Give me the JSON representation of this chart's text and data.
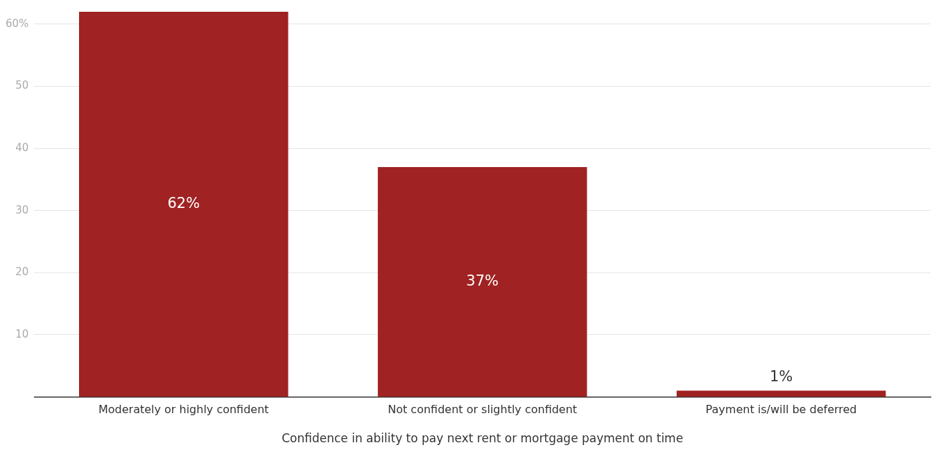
{
  "chart_data": {
    "type": "bar",
    "xlabel": "Confidence in ability to pay next rent or mortgage payment on time",
    "categories": [
      "Moderately or highly confident",
      "Not confident or slightly confident",
      "Payment is/will be deferred"
    ],
    "values": [
      62,
      37,
      1
    ],
    "value_labels": [
      "62%",
      "37%",
      "1%"
    ],
    "color": "#a02222",
    "ylim": [
      0,
      62
    ],
    "yticks": [
      10,
      20,
      30,
      40,
      50,
      {
        "value": 60,
        "label": "60%"
      }
    ],
    "grid": "y"
  }
}
